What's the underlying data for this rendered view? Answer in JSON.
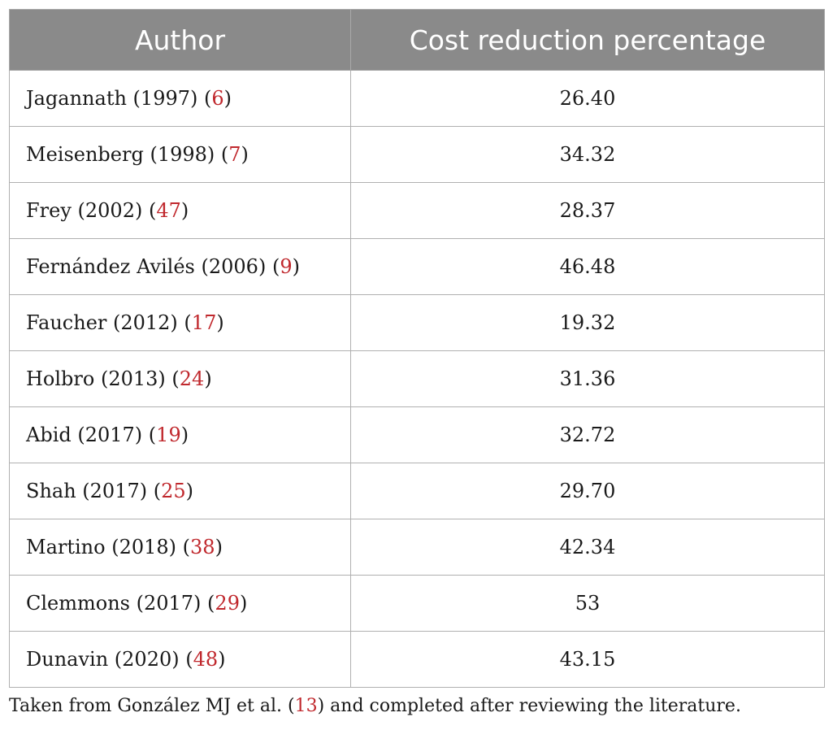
{
  "table": {
    "headers": [
      "Author",
      "Cost reduction percentage"
    ],
    "rows": [
      {
        "author": "Jagannath (1997)",
        "ref": "6",
        "value": "26.40"
      },
      {
        "author": "Meisenberg (1998)",
        "ref": "7",
        "value": "34.32"
      },
      {
        "author": "Frey (2002)",
        "ref": "47",
        "value": "28.37"
      },
      {
        "author": "Fernández Avilés (2006)",
        "ref": "9",
        "value": "46.48"
      },
      {
        "author": "Faucher (2012)",
        "ref": "17",
        "value": "19.32"
      },
      {
        "author": "Holbro (2013)",
        "ref": "24",
        "value": "31.36"
      },
      {
        "author": "Abid (2017)",
        "ref": "19",
        "value": "32.72"
      },
      {
        "author": "Shah (2017)",
        "ref": "25",
        "value": "29.70"
      },
      {
        "author": "Martino (2018)",
        "ref": "38",
        "value": "42.34"
      },
      {
        "author": "Clemmons (2017)",
        "ref": "29",
        "value": "53"
      },
      {
        "author": "Dunavin (2020)",
        "ref": "48",
        "value": "43.15"
      }
    ]
  },
  "footnote": {
    "before": "Taken from González MJ et al. (",
    "ref": "13",
    "after": ") and completed after reviewing the literature."
  },
  "colors": {
    "header_bg": "#8a8a8a",
    "reference_link": "#c0282d"
  }
}
